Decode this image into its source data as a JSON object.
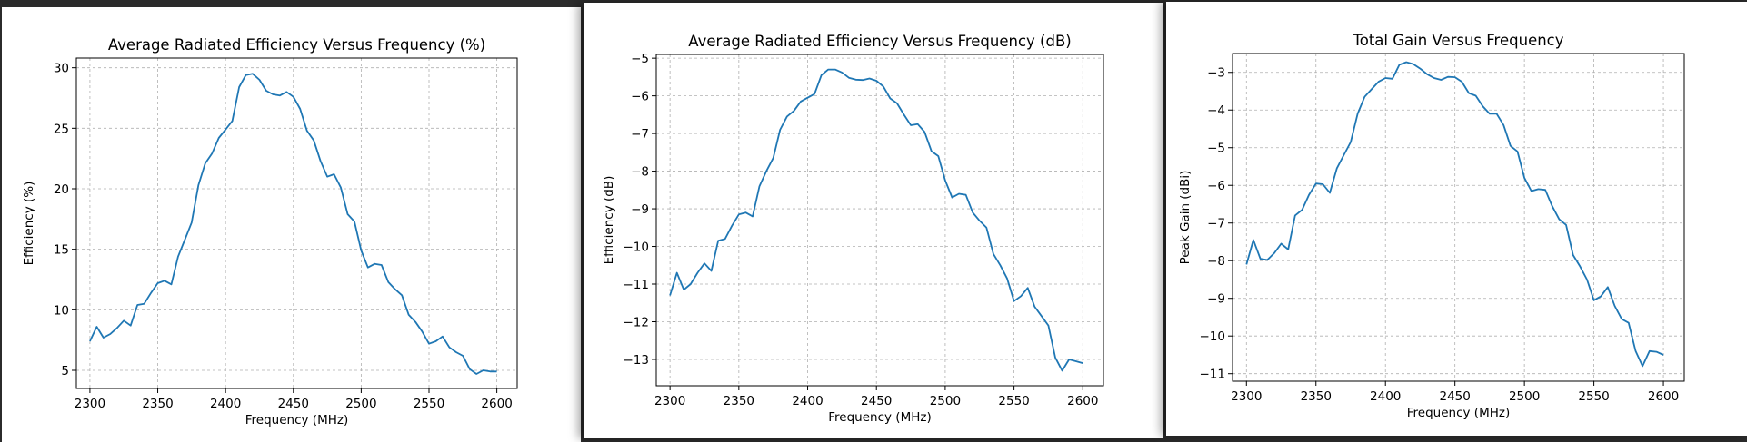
{
  "colors": {
    "series": "#1f77b4",
    "background": "#2b2b2b"
  },
  "chart_data": [
    {
      "type": "line",
      "title": "Average Radiated Efficiency Versus Frequency (%)",
      "xlabel": "Frequency (MHz)",
      "ylabel": "Efficiency (%)",
      "xlim": [
        2290,
        2615
      ],
      "ylim": [
        3.5,
        30.8
      ],
      "xticks": [
        2300,
        2350,
        2400,
        2450,
        2500,
        2550,
        2600
      ],
      "yticks": [
        5,
        10,
        15,
        20,
        25,
        30
      ],
      "ytick_labels": [
        "5",
        "10",
        "15",
        "20",
        "25",
        "30"
      ],
      "grid": true,
      "x": [
        2300,
        2305,
        2310,
        2315,
        2320,
        2325,
        2330,
        2335,
        2340,
        2345,
        2350,
        2355,
        2360,
        2365,
        2370,
        2375,
        2380,
        2385,
        2390,
        2395,
        2400,
        2405,
        2410,
        2415,
        2420,
        2425,
        2430,
        2435,
        2440,
        2445,
        2450,
        2455,
        2460,
        2465,
        2470,
        2475,
        2480,
        2485,
        2490,
        2495,
        2500,
        2505,
        2510,
        2515,
        2520,
        2525,
        2530,
        2535,
        2540,
        2545,
        2550,
        2555,
        2560,
        2565,
        2570,
        2575,
        2580,
        2585,
        2590,
        2595,
        2600
      ],
      "series": [
        {
          "values": [
            7.4,
            8.6,
            7.7,
            8.0,
            8.5,
            9.1,
            8.7,
            10.4,
            10.5,
            11.4,
            12.2,
            12.4,
            12.1,
            14.4,
            15.8,
            17.2,
            20.3,
            22.1,
            22.9,
            24.2,
            24.9,
            25.6,
            28.4,
            29.4,
            29.5,
            29.0,
            28.1,
            27.8,
            27.7,
            28.0,
            27.6,
            26.6,
            24.8,
            24.0,
            22.3,
            21.0,
            21.2,
            20.1,
            17.9,
            17.3,
            14.9,
            13.5,
            13.8,
            13.7,
            12.3,
            11.7,
            11.2,
            9.6,
            9.0,
            8.2,
            7.2,
            7.4,
            7.8,
            6.9,
            6.5,
            6.2,
            5.1,
            4.7,
            5.0,
            4.9,
            4.9
          ]
        }
      ]
    },
    {
      "type": "line",
      "title": "Average Radiated Efficiency Versus Frequency (dB)",
      "xlabel": "Frequency (MHz)",
      "ylabel": "Efficiency (dB)",
      "xlim": [
        2290,
        2615
      ],
      "ylim": [
        -13.7,
        -4.9
      ],
      "xticks": [
        2300,
        2350,
        2400,
        2450,
        2500,
        2550,
        2600
      ],
      "yticks": [
        -13,
        -12,
        -11,
        -10,
        -9,
        -8,
        -7,
        -6,
        -5
      ],
      "ytick_labels": [
        "−13",
        "−12",
        "−11",
        "−10",
        "−9",
        "−8",
        "−7",
        "−6",
        "−5"
      ],
      "grid": true,
      "x": [
        2300,
        2305,
        2310,
        2315,
        2320,
        2325,
        2330,
        2335,
        2340,
        2345,
        2350,
        2355,
        2360,
        2365,
        2370,
        2375,
        2380,
        2385,
        2390,
        2395,
        2400,
        2405,
        2410,
        2415,
        2420,
        2425,
        2430,
        2435,
        2440,
        2445,
        2450,
        2455,
        2460,
        2465,
        2470,
        2475,
        2480,
        2485,
        2490,
        2495,
        2500,
        2505,
        2510,
        2515,
        2520,
        2525,
        2530,
        2535,
        2540,
        2545,
        2550,
        2555,
        2560,
        2565,
        2570,
        2575,
        2580,
        2585,
        2590,
        2595,
        2600
      ],
      "series": [
        {
          "values": [
            -11.3,
            -10.7,
            -11.15,
            -11.0,
            -10.7,
            -10.45,
            -10.65,
            -9.85,
            -9.8,
            -9.45,
            -9.15,
            -9.1,
            -9.2,
            -8.4,
            -8.0,
            -7.65,
            -6.9,
            -6.55,
            -6.4,
            -6.15,
            -6.05,
            -5.95,
            -5.45,
            -5.3,
            -5.3,
            -5.38,
            -5.52,
            -5.57,
            -5.58,
            -5.54,
            -5.6,
            -5.75,
            -6.07,
            -6.2,
            -6.5,
            -6.78,
            -6.75,
            -6.96,
            -7.47,
            -7.6,
            -8.25,
            -8.7,
            -8.6,
            -8.63,
            -9.1,
            -9.32,
            -9.5,
            -10.2,
            -10.5,
            -10.85,
            -11.45,
            -11.32,
            -11.1,
            -11.6,
            -11.85,
            -12.1,
            -12.95,
            -13.3,
            -13.0,
            -13.05,
            -13.1
          ]
        }
      ]
    },
    {
      "type": "line",
      "title": "Total Gain Versus Frequency",
      "xlabel": "Frequency (MHz)",
      "ylabel": "Peak Gain (dBi)",
      "xlim": [
        2290,
        2615
      ],
      "ylim": [
        -11.2,
        -2.5
      ],
      "xticks": [
        2300,
        2350,
        2400,
        2450,
        2500,
        2550,
        2600
      ],
      "yticks": [
        -11,
        -10,
        -9,
        -8,
        -7,
        -6,
        -5,
        -4,
        -3
      ],
      "ytick_labels": [
        "−11",
        "−10",
        "−9",
        "−8",
        "−7",
        "−6",
        "−5",
        "−4",
        "−3"
      ],
      "grid": true,
      "x": [
        2300,
        2305,
        2310,
        2315,
        2320,
        2325,
        2330,
        2335,
        2340,
        2345,
        2350,
        2355,
        2360,
        2365,
        2370,
        2375,
        2380,
        2385,
        2390,
        2395,
        2400,
        2405,
        2410,
        2415,
        2420,
        2425,
        2430,
        2435,
        2440,
        2445,
        2450,
        2455,
        2460,
        2465,
        2470,
        2475,
        2480,
        2485,
        2490,
        2495,
        2500,
        2505,
        2510,
        2515,
        2520,
        2525,
        2530,
        2535,
        2540,
        2545,
        2550,
        2555,
        2560,
        2565,
        2570,
        2575,
        2580,
        2585,
        2590,
        2595,
        2600
      ],
      "series": [
        {
          "values": [
            -8.1,
            -7.45,
            -7.95,
            -7.98,
            -7.8,
            -7.55,
            -7.7,
            -6.8,
            -6.65,
            -6.25,
            -5.95,
            -5.97,
            -6.2,
            -5.55,
            -5.2,
            -4.85,
            -4.1,
            -3.65,
            -3.45,
            -3.25,
            -3.15,
            -3.17,
            -2.8,
            -2.73,
            -2.78,
            -2.9,
            -3.05,
            -3.15,
            -3.2,
            -3.12,
            -3.13,
            -3.25,
            -3.55,
            -3.62,
            -3.9,
            -4.1,
            -4.1,
            -4.4,
            -4.95,
            -5.1,
            -5.8,
            -6.15,
            -6.1,
            -6.12,
            -6.55,
            -6.9,
            -7.05,
            -7.85,
            -8.15,
            -8.5,
            -9.05,
            -8.95,
            -8.7,
            -9.2,
            -9.55,
            -9.65,
            -10.4,
            -10.8,
            -10.4,
            -10.42,
            -10.5
          ]
        }
      ]
    }
  ]
}
